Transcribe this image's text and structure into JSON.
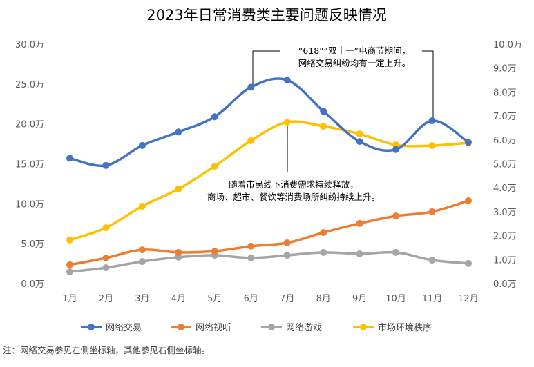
{
  "chart_data": {
    "type": "line",
    "title": "2023年日常消费类主要问题反映情况",
    "categories": [
      "1月",
      "2月",
      "3月",
      "4月",
      "5月",
      "6月",
      "7月",
      "8月",
      "9月",
      "10月",
      "11月",
      "12月"
    ],
    "left_axis": {
      "ylim": [
        0,
        30
      ],
      "ticks": [
        "0.0万",
        "5.0万",
        "10.0万",
        "15.0万",
        "20.0万",
        "25.0万",
        "30.0万"
      ],
      "unit": "万"
    },
    "right_axis": {
      "ylim": [
        0,
        10
      ],
      "ticks": [
        "0.0万",
        "1.0万",
        "2.0万",
        "3.0万",
        "4.0万",
        "5.0万",
        "6.0万",
        "7.0万",
        "8.0万",
        "9.0万",
        "10.0万"
      ],
      "unit": "万"
    },
    "grid": false,
    "legend": "bottom",
    "series": [
      {
        "name": "网络交易",
        "axis": "left",
        "color": "#4472C4",
        "values": [
          15.7,
          14.8,
          17.3,
          19.0,
          20.9,
          24.6,
          25.5,
          21.6,
          17.8,
          16.8,
          20.4,
          17.7
        ]
      },
      {
        "name": "网络视听",
        "axis": "right",
        "color": "#ED7D31",
        "values": [
          0.78,
          1.07,
          1.41,
          1.3,
          1.35,
          1.56,
          1.7,
          2.13,
          2.51,
          2.82,
          3.0,
          3.46
        ]
      },
      {
        "name": "网络游戏",
        "axis": "right",
        "color": "#A5A5A5",
        "values": [
          0.49,
          0.66,
          0.92,
          1.1,
          1.18,
          1.07,
          1.18,
          1.3,
          1.24,
          1.3,
          0.98,
          0.84
        ]
      },
      {
        "name": "市场环境秩序",
        "axis": "right",
        "color": "#FFC000",
        "values": [
          1.82,
          2.33,
          3.23,
          3.95,
          4.9,
          5.97,
          6.74,
          6.57,
          6.25,
          5.79,
          5.76,
          5.88
        ]
      }
    ],
    "annotations": [
      {
        "lines": [
          "“618”“双十一”电商节期间，",
          "网络交易纠纷均有一定上升。"
        ]
      },
      {
        "lines": [
          "随着市民线下消费需求持续释放，",
          "商场、超市、餐饮等消费场所纠纷持续上升。"
        ]
      }
    ],
    "note": "注：网络交易参见左侧坐标轴，其他参见右侧坐标轴。"
  }
}
